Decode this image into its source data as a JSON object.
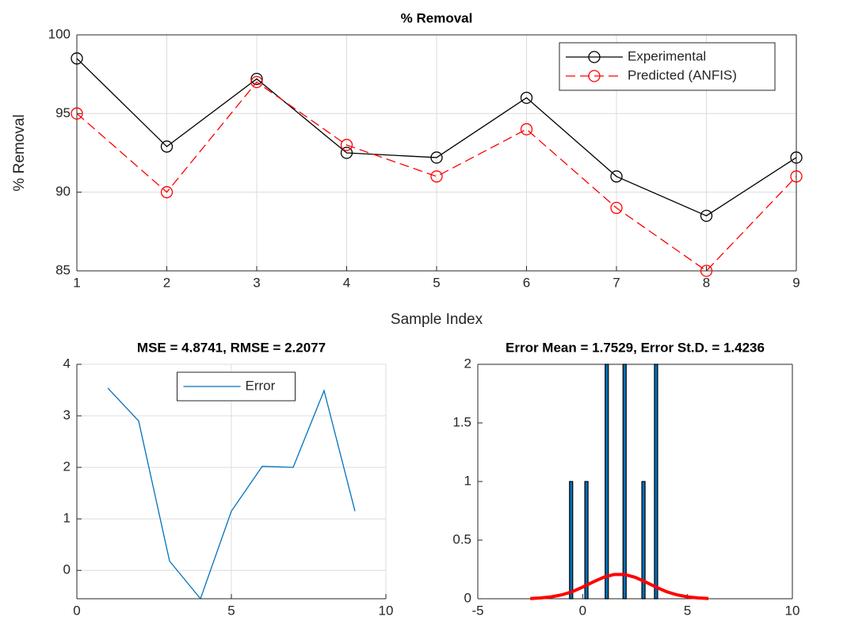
{
  "chart_data": [
    {
      "type": "line",
      "title": "% Removal",
      "xlabel": "Sample Index",
      "ylabel": "% Removal",
      "x": [
        1,
        2,
        3,
        4,
        5,
        6,
        7,
        8,
        9
      ],
      "xlim": [
        1,
        9
      ],
      "xticks": [
        1,
        2,
        3,
        4,
        5,
        6,
        7,
        8,
        9
      ],
      "ylim": [
        85,
        100
      ],
      "yticks": [
        85,
        90,
        95,
        100
      ],
      "grid": true,
      "box": true,
      "legend": "upper right",
      "series": [
        {
          "name": "Experimental",
          "color": "#000000",
          "line_style": "solid",
          "marker": "circle",
          "values": [
            98.5,
            92.9,
            97.2,
            92.5,
            92.2,
            96.0,
            91.0,
            88.5,
            92.2
          ]
        },
        {
          "name": "Predicted (ANFIS)",
          "color": "#ff0000",
          "line_style": "dashed",
          "marker": "circle",
          "values": [
            95,
            90,
            97,
            93,
            91,
            94,
            89,
            85,
            91
          ]
        }
      ]
    },
    {
      "type": "line",
      "title": "MSE = 4.8741, RMSE = 2.2077",
      "x": [
        1,
        2,
        3,
        4,
        5,
        6,
        7,
        8,
        9
      ],
      "xlim": [
        0,
        10
      ],
      "xticks": [
        0,
        5,
        10
      ],
      "ylim": [
        -0.55,
        4
      ],
      "yticks": [
        0,
        1,
        2,
        3,
        4
      ],
      "grid": true,
      "box": false,
      "legend": "upper center",
      "series": [
        {
          "name": "Error",
          "color": "#0072bd",
          "line_style": "solid",
          "values": [
            3.54,
            2.9,
            0.18,
            -0.55,
            1.15,
            2.02,
            2.0,
            3.49,
            1.15
          ]
        }
      ]
    },
    {
      "type": "histogram",
      "title": "Error Mean = 1.7529, Error St.D. = 1.4236",
      "x": [
        -0.55,
        0.18,
        1.15,
        2.0,
        2.9,
        3.5
      ],
      "values": [
        1,
        1,
        2,
        2,
        1,
        2
      ],
      "color": "#0072bd",
      "xlim": [
        -5,
        10
      ],
      "xticks": [
        -5,
        0,
        5,
        10
      ],
      "ylim": [
        0,
        2
      ],
      "yticks": [
        0,
        0.5,
        1,
        1.5,
        2
      ],
      "grid": false,
      "box": true,
      "curve": {
        "color": "#ff0000",
        "x": [
          -2.5,
          -2,
          -1.5,
          -1,
          -0.5,
          0,
          0.5,
          1,
          1.5,
          2,
          2.5,
          3,
          3.5,
          4,
          4.5,
          5,
          5.5,
          6
        ],
        "values": [
          0.002,
          0.007,
          0.016,
          0.033,
          0.06,
          0.099,
          0.143,
          0.183,
          0.207,
          0.207,
          0.183,
          0.143,
          0.099,
          0.06,
          0.033,
          0.016,
          0.007,
          0.002
        ]
      }
    }
  ]
}
